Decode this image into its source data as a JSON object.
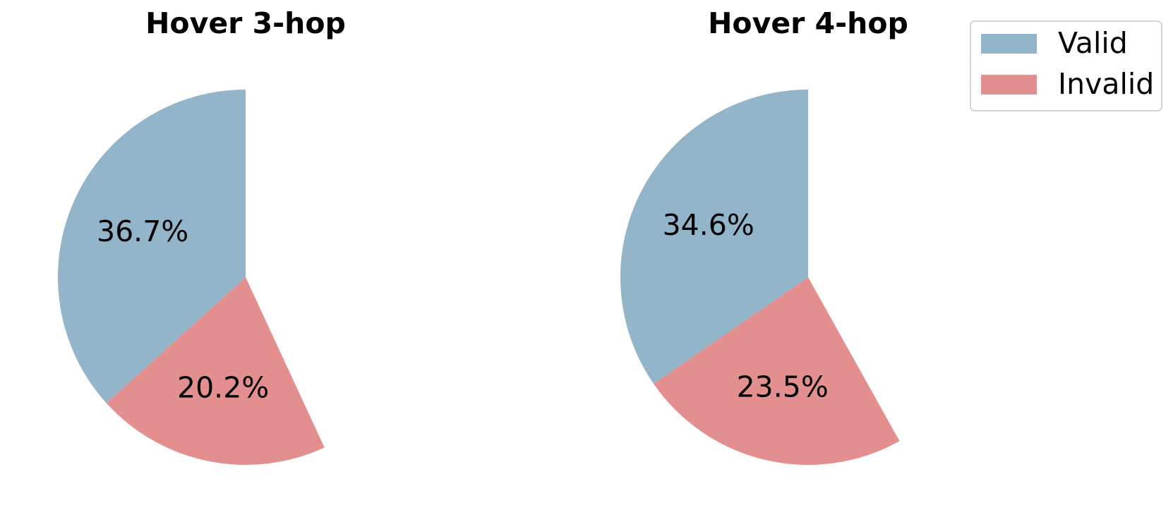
{
  "chart_data": [
    {
      "type": "pie",
      "title": "Hover 3-hop",
      "slices": [
        {
          "label": "Valid",
          "value": 36.7,
          "display": "36.7%",
          "color": "#93b5ca"
        },
        {
          "label": "Invalid",
          "value": 20.2,
          "display": "20.2%",
          "color": "#e48f8f"
        }
      ],
      "legend": null
    },
    {
      "type": "pie",
      "title": "Hover 4-hop",
      "slices": [
        {
          "label": "Valid",
          "value": 34.6,
          "display": "34.6%",
          "color": "#93b5ca"
        },
        {
          "label": "Invalid",
          "value": 23.5,
          "display": "23.5%",
          "color": "#e48f8f"
        }
      ],
      "legend": "top-right"
    }
  ],
  "legend": {
    "placement": "top-right",
    "items": [
      {
        "label": "Valid",
        "color": "#93b5ca"
      },
      {
        "label": "Invalid",
        "color": "#e48f8f"
      }
    ]
  }
}
